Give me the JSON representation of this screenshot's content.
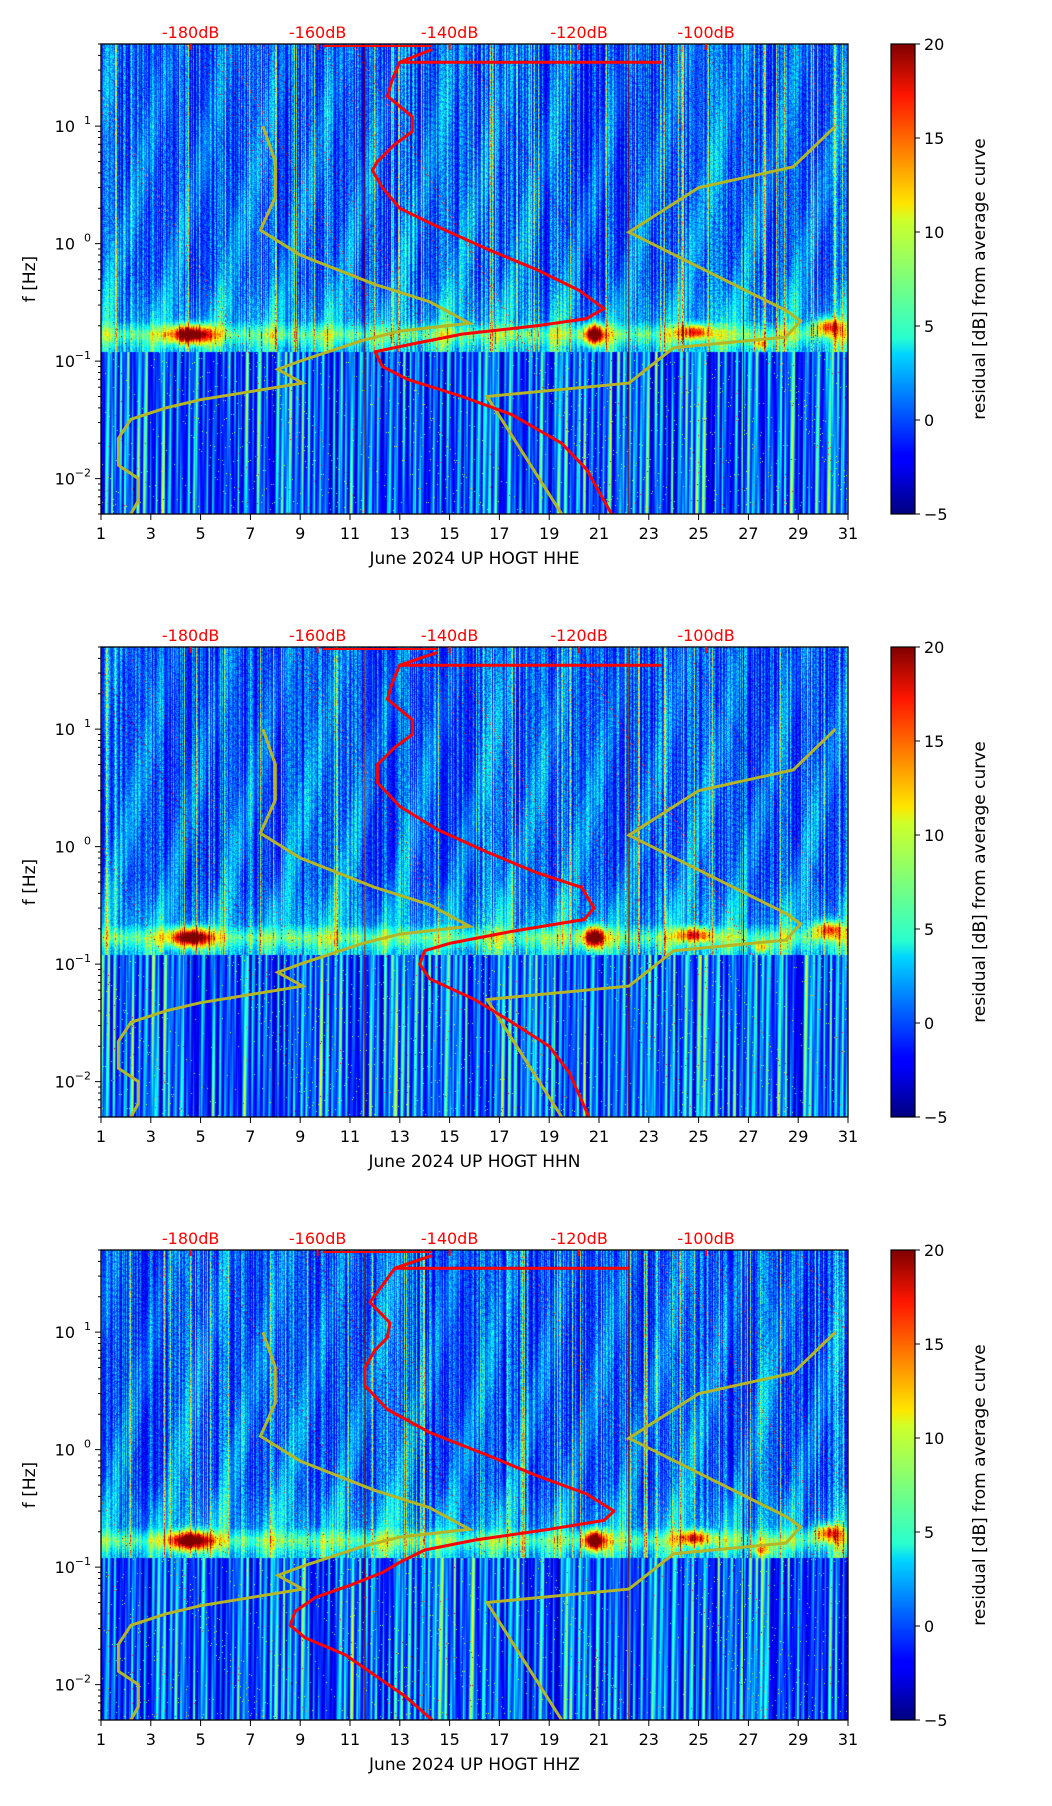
{
  "chart_data": [
    {
      "type": "heatmap",
      "title": "",
      "xlabel": "June 2024 UP HOGT  HHE",
      "ylabel": "f [Hz]",
      "xlim": [
        1,
        31
      ],
      "ylim": [
        0.005,
        50
      ],
      "yscale": "log",
      "x_ticks": [
        "1",
        "3",
        "5",
        "7",
        "9",
        "11",
        "13",
        "15",
        "17",
        "19",
        "21",
        "23",
        "25",
        "27",
        "29",
        "31"
      ],
      "y_ticks": [
        {
          "value": 0.01,
          "base": "10",
          "exp": "−2"
        },
        {
          "value": 0.1,
          "base": "10",
          "exp": "−1"
        },
        {
          "value": 1,
          "base": "10",
          "exp": "0"
        },
        {
          "value": 10,
          "base": "10",
          "exp": "1"
        }
      ],
      "top_axis": {
        "labels": [
          "-180dB",
          "-160dB",
          "-140dB",
          "-120dB",
          "-100dB"
        ],
        "days": [
          4.6,
          9.7,
          15.0,
          20.2,
          25.3
        ]
      },
      "colorbar": {
        "label": "residual [dB] from average curve",
        "min": -5,
        "max": 20,
        "ticks": [
          "−5",
          "0",
          "5",
          "10",
          "15",
          "20"
        ]
      },
      "noise_model_curve": {
        "color": "#b5b525",
        "points": [
          [
            7.5,
            10
          ],
          [
            8,
            5
          ],
          [
            8,
            2.5
          ],
          [
            7.4,
            1.3
          ],
          [
            9,
            0.8
          ],
          [
            12,
            0.45
          ],
          [
            14.2,
            0.32
          ],
          [
            15.8,
            0.21
          ],
          [
            13,
            0.18
          ],
          [
            11.5,
            0.15
          ],
          [
            9,
            0.1
          ],
          [
            8.1,
            0.085
          ],
          [
            9.1,
            0.065
          ],
          [
            5,
            0.047
          ],
          [
            3.6,
            0.04
          ],
          [
            2.2,
            0.032
          ],
          [
            1.7,
            0.022
          ],
          [
            1.7,
            0.013
          ],
          [
            2.5,
            0.01
          ],
          [
            2.5,
            0.0065
          ],
          [
            2.2,
            0.005
          ]
        ]
      },
      "noise_model_curve_right": {
        "color": "#b5b525",
        "points": [
          [
            19.5,
            0.005
          ],
          [
            16.5,
            0.05
          ],
          [
            22.2,
            0.065
          ],
          [
            24,
            0.13
          ],
          [
            28.5,
            0.16
          ],
          [
            29.1,
            0.22
          ],
          [
            28.5,
            0.27
          ],
          [
            22.2,
            1.25
          ],
          [
            25,
            3.0
          ],
          [
            28.8,
            4.5
          ],
          [
            30.5,
            10
          ]
        ]
      },
      "average_curve": {
        "color": "#ff0000",
        "points": [
          [
            14.3,
            45
          ],
          [
            13,
            35
          ],
          [
            12.7,
            25
          ],
          [
            12.5,
            18
          ],
          [
            13.5,
            12
          ],
          [
            13.5,
            9
          ],
          [
            12.8,
            7
          ],
          [
            12.1,
            5
          ],
          [
            11.9,
            4.2
          ],
          [
            12.3,
            3
          ],
          [
            13,
            2
          ],
          [
            14.5,
            1.4
          ],
          [
            16.5,
            0.9
          ],
          [
            18.5,
            0.6
          ],
          [
            20.2,
            0.4
          ],
          [
            21.2,
            0.28
          ],
          [
            20.5,
            0.23
          ],
          [
            18.5,
            0.2
          ],
          [
            15.5,
            0.17
          ],
          [
            13.5,
            0.14
          ],
          [
            12.0,
            0.12
          ],
          [
            12.3,
            0.09
          ],
          [
            13.3,
            0.07
          ],
          [
            15.5,
            0.05
          ],
          [
            17.5,
            0.035
          ],
          [
            19.5,
            0.02
          ],
          [
            20.5,
            0.012
          ],
          [
            21.5,
            0.005
          ]
        ]
      },
      "average_curve_spur": {
        "points": [
          [
            13,
            35
          ],
          [
            23.5,
            35
          ]
        ]
      }
    },
    {
      "type": "heatmap",
      "title": "",
      "xlabel": "June 2024 UP HOGT  HHN",
      "ylabel": "f [Hz]",
      "xlim": [
        1,
        31
      ],
      "ylim": [
        0.005,
        50
      ],
      "yscale": "log",
      "x_ticks": [
        "1",
        "3",
        "5",
        "7",
        "9",
        "11",
        "13",
        "15",
        "17",
        "19",
        "21",
        "23",
        "25",
        "27",
        "29",
        "31"
      ],
      "y_ticks": [
        {
          "value": 0.01,
          "base": "10",
          "exp": "−2"
        },
        {
          "value": 0.1,
          "base": "10",
          "exp": "−1"
        },
        {
          "value": 1,
          "base": "10",
          "exp": "0"
        },
        {
          "value": 10,
          "base": "10",
          "exp": "1"
        }
      ],
      "top_axis": {
        "labels": [
          "-180dB",
          "-160dB",
          "-140dB",
          "-120dB",
          "-100dB"
        ],
        "days": [
          4.6,
          9.7,
          15.0,
          20.2,
          25.3
        ]
      },
      "colorbar": {
        "label": "residual [dB] from average curve",
        "min": -5,
        "max": 20,
        "ticks": [
          "−5",
          "0",
          "5",
          "10",
          "15",
          "20"
        ]
      },
      "noise_model_curve": {
        "color": "#b5b525",
        "points": [
          [
            7.5,
            10
          ],
          [
            8,
            5
          ],
          [
            8,
            2.5
          ],
          [
            7.4,
            1.3
          ],
          [
            9,
            0.8
          ],
          [
            12,
            0.45
          ],
          [
            14.2,
            0.32
          ],
          [
            15.8,
            0.21
          ],
          [
            13,
            0.18
          ],
          [
            11.5,
            0.15
          ],
          [
            9,
            0.1
          ],
          [
            8.1,
            0.085
          ],
          [
            9.1,
            0.065
          ],
          [
            5,
            0.047
          ],
          [
            3.6,
            0.04
          ],
          [
            2.2,
            0.032
          ],
          [
            1.7,
            0.022
          ],
          [
            1.7,
            0.013
          ],
          [
            2.5,
            0.01
          ],
          [
            2.5,
            0.0065
          ],
          [
            2.2,
            0.005
          ]
        ]
      },
      "noise_model_curve_right": {
        "color": "#b5b525",
        "points": [
          [
            19.5,
            0.005
          ],
          [
            16.5,
            0.05
          ],
          [
            22.2,
            0.065
          ],
          [
            24,
            0.13
          ],
          [
            28.5,
            0.16
          ],
          [
            29.1,
            0.22
          ],
          [
            28.5,
            0.27
          ],
          [
            22.2,
            1.25
          ],
          [
            25,
            3.0
          ],
          [
            28.8,
            4.5
          ],
          [
            30.5,
            10
          ]
        ]
      },
      "average_curve": {
        "color": "#ff0000",
        "points": [
          [
            14.5,
            45
          ],
          [
            13,
            35
          ],
          [
            12.7,
            25
          ],
          [
            12.5,
            18
          ],
          [
            13.5,
            12
          ],
          [
            13.5,
            9
          ],
          [
            12.8,
            7
          ],
          [
            12.1,
            5
          ],
          [
            12.1,
            3.5
          ],
          [
            13,
            2.2
          ],
          [
            14.5,
            1.4
          ],
          [
            16.5,
            0.9
          ],
          [
            18.5,
            0.6
          ],
          [
            20.3,
            0.45
          ],
          [
            20.8,
            0.3
          ],
          [
            20.4,
            0.24
          ],
          [
            17.5,
            0.19
          ],
          [
            15,
            0.15
          ],
          [
            14,
            0.13
          ],
          [
            13.8,
            0.1
          ],
          [
            14.2,
            0.075
          ],
          [
            16,
            0.05
          ],
          [
            17.5,
            0.032
          ],
          [
            19,
            0.02
          ],
          [
            19.8,
            0.012
          ],
          [
            20.6,
            0.005
          ]
        ]
      },
      "average_curve_spur": {
        "points": [
          [
            13,
            35
          ],
          [
            23.5,
            35
          ]
        ]
      }
    },
    {
      "type": "heatmap",
      "title": "",
      "xlabel": "June 2024 UP HOGT  HHZ",
      "ylabel": "f [Hz]",
      "xlim": [
        1,
        31
      ],
      "ylim": [
        0.005,
        50
      ],
      "yscale": "log",
      "x_ticks": [
        "1",
        "3",
        "5",
        "7",
        "9",
        "11",
        "13",
        "15",
        "17",
        "19",
        "21",
        "23",
        "25",
        "27",
        "29",
        "31"
      ],
      "y_ticks": [
        {
          "value": 0.01,
          "base": "10",
          "exp": "−2"
        },
        {
          "value": 0.1,
          "base": "10",
          "exp": "−1"
        },
        {
          "value": 1,
          "base": "10",
          "exp": "0"
        },
        {
          "value": 10,
          "base": "10",
          "exp": "1"
        }
      ],
      "top_axis": {
        "labels": [
          "-180dB",
          "-160dB",
          "-140dB",
          "-120dB",
          "-100dB"
        ],
        "days": [
          4.6,
          9.7,
          15.0,
          20.2,
          25.3
        ]
      },
      "colorbar": {
        "label": "residual [dB] from average curve",
        "min": -5,
        "max": 20,
        "ticks": [
          "−5",
          "0",
          "5",
          "10",
          "15",
          "20"
        ]
      },
      "noise_model_curve": {
        "color": "#b5b525",
        "points": [
          [
            7.5,
            10
          ],
          [
            8,
            5
          ],
          [
            8,
            2.5
          ],
          [
            7.4,
            1.3
          ],
          [
            9,
            0.8
          ],
          [
            12,
            0.45
          ],
          [
            14.2,
            0.32
          ],
          [
            15.8,
            0.21
          ],
          [
            13,
            0.18
          ],
          [
            11.5,
            0.15
          ],
          [
            9,
            0.1
          ],
          [
            8.1,
            0.085
          ],
          [
            9.1,
            0.065
          ],
          [
            5,
            0.047
          ],
          [
            3.6,
            0.04
          ],
          [
            2.2,
            0.032
          ],
          [
            1.7,
            0.022
          ],
          [
            1.7,
            0.013
          ],
          [
            2.5,
            0.01
          ],
          [
            2.5,
            0.0065
          ],
          [
            2.2,
            0.005
          ]
        ]
      },
      "noise_model_curve_right": {
        "color": "#b5b525",
        "points": [
          [
            19.5,
            0.005
          ],
          [
            16.5,
            0.05
          ],
          [
            22.2,
            0.065
          ],
          [
            24,
            0.13
          ],
          [
            28.5,
            0.16
          ],
          [
            29.1,
            0.22
          ],
          [
            28.5,
            0.27
          ],
          [
            22.2,
            1.25
          ],
          [
            25,
            3.0
          ],
          [
            28.8,
            4.5
          ],
          [
            30.5,
            10
          ]
        ]
      },
      "average_curve": {
        "color": "#ff0000",
        "points": [
          [
            14.3,
            45
          ],
          [
            12.8,
            35
          ],
          [
            12.3,
            25
          ],
          [
            11.8,
            18
          ],
          [
            12.6,
            12
          ],
          [
            12.5,
            9
          ],
          [
            12.0,
            7
          ],
          [
            11.6,
            5
          ],
          [
            11.6,
            3.5
          ],
          [
            12.5,
            2.2
          ],
          [
            14.2,
            1.4
          ],
          [
            16.5,
            0.9
          ],
          [
            18.5,
            0.6
          ],
          [
            20.5,
            0.42
          ],
          [
            21.6,
            0.3
          ],
          [
            21.2,
            0.25
          ],
          [
            19,
            0.21
          ],
          [
            16,
            0.17
          ],
          [
            14,
            0.14
          ],
          [
            13,
            0.11
          ],
          [
            12.3,
            0.09
          ],
          [
            11,
            0.07
          ],
          [
            9.6,
            0.055
          ],
          [
            8.8,
            0.042
          ],
          [
            8.6,
            0.032
          ],
          [
            9.2,
            0.025
          ],
          [
            10.8,
            0.018
          ],
          [
            12,
            0.012
          ],
          [
            13.2,
            0.008
          ],
          [
            14.3,
            0.005
          ]
        ]
      },
      "average_curve_spur": {
        "points": [
          [
            12.8,
            35
          ],
          [
            22.2,
            35
          ]
        ]
      }
    }
  ]
}
